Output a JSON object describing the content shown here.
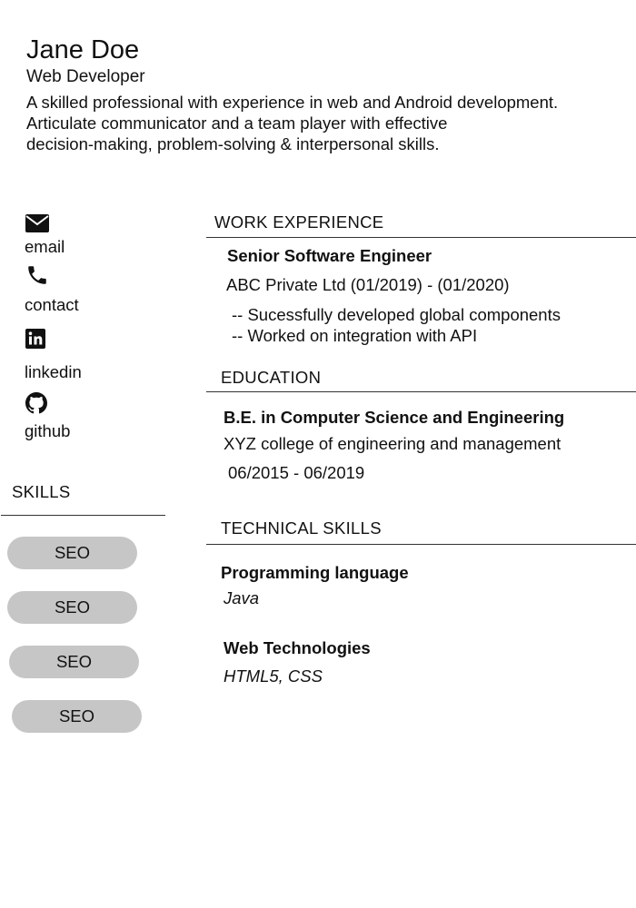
{
  "header": {
    "name": "Jane Doe",
    "role": "Web Developer",
    "summary": [
      "A skilled professional with experience in web and Android development.",
      "Articulate communicator and a team player with effective",
      "decision-making, problem-solving & interpersonal skills."
    ]
  },
  "contacts": [
    {
      "icon": "envelope-icon",
      "label": "email"
    },
    {
      "icon": "phone-icon",
      "label": "contact"
    },
    {
      "icon": "linkedin-icon",
      "label": "linkedin"
    },
    {
      "icon": "github-icon",
      "label": "github"
    }
  ],
  "skills": {
    "title": "SKILLS",
    "items": [
      "SEO",
      "SEO",
      "SEO",
      "SEO"
    ]
  },
  "work": {
    "title": "WORK EXPERIENCE",
    "position": "Senior Software Engineer",
    "company": "ABC Private Ltd (01/2019) - (01/2020)",
    "bullets": [
      "-- Sucessfully developed global components",
      "-- Worked on integration with API"
    ]
  },
  "education": {
    "title": "EDUCATION",
    "degree": "B.E. in Computer Science and Engineering",
    "school": "XYZ college of engineering and management",
    "dates": "06/2015 - 06/2019"
  },
  "technical": {
    "title": "TECHNICAL SKILLS",
    "groups": [
      {
        "name": "Programming language",
        "value": "Java"
      },
      {
        "name": "Web Technologies",
        "value": "HTML5, CSS"
      }
    ]
  }
}
